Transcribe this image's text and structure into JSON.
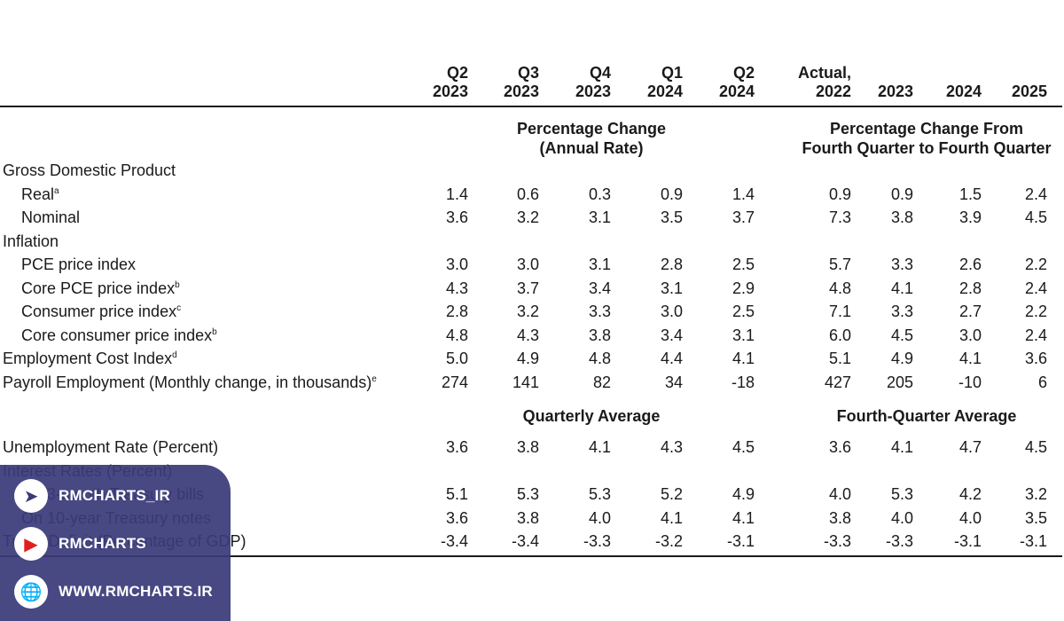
{
  "header": {
    "columns": [
      {
        "top": "Q2",
        "bottom": "2023"
      },
      {
        "top": "Q3",
        "bottom": "2023"
      },
      {
        "top": "Q4",
        "bottom": "2023"
      },
      {
        "top": "Q1",
        "bottom": "2024"
      },
      {
        "top": "Q2",
        "bottom": "2024"
      },
      {
        "top": "Actual,",
        "bottom": "2022"
      },
      {
        "top": "",
        "bottom": "2023"
      },
      {
        "top": "",
        "bottom": "2024"
      },
      {
        "top": "",
        "bottom": "2025"
      }
    ]
  },
  "bands": {
    "left1": {
      "line1": "Percentage Change",
      "line2": "(Annual Rate)"
    },
    "right1": {
      "line1": "Percentage Change From",
      "line2": "Fourth Quarter to Fourth Quarter"
    },
    "left2": "Quarterly Average",
    "right2": "Fourth-Quarter Average"
  },
  "rows": [
    {
      "label": "Gross Domestic Product",
      "sup": "",
      "indent": false,
      "values": []
    },
    {
      "label": "Real",
      "sup": "a",
      "indent": true,
      "values": [
        "1.4",
        "0.6",
        "0.3",
        "0.9",
        "1.4",
        "0.9",
        "0.9",
        "1.5",
        "2.4"
      ]
    },
    {
      "label": "Nominal",
      "sup": "",
      "indent": true,
      "values": [
        "3.6",
        "3.2",
        "3.1",
        "3.5",
        "3.7",
        "7.3",
        "3.8",
        "3.9",
        "4.5"
      ]
    },
    {
      "label": "Inflation",
      "sup": "",
      "indent": false,
      "values": []
    },
    {
      "label": "PCE price index",
      "sup": "",
      "indent": true,
      "values": [
        "3.0",
        "3.0",
        "3.1",
        "2.8",
        "2.5",
        "5.7",
        "3.3",
        "2.6",
        "2.2"
      ]
    },
    {
      "label": "Core PCE price index",
      "sup": "b",
      "indent": true,
      "values": [
        "4.3",
        "3.7",
        "3.4",
        "3.1",
        "2.9",
        "4.8",
        "4.1",
        "2.8",
        "2.4"
      ]
    },
    {
      "label": "Consumer price index",
      "sup": "c",
      "indent": true,
      "values": [
        "2.8",
        "3.2",
        "3.3",
        "3.0",
        "2.5",
        "7.1",
        "3.3",
        "2.7",
        "2.2"
      ]
    },
    {
      "label": "Core consumer price index",
      "sup": "b",
      "indent": true,
      "values": [
        "4.8",
        "4.3",
        "3.8",
        "3.4",
        "3.1",
        "6.0",
        "4.5",
        "3.0",
        "2.4"
      ]
    },
    {
      "label": "Employment Cost Index",
      "sup": "d",
      "indent": false,
      "values": [
        "5.0",
        "4.9",
        "4.8",
        "4.4",
        "4.1",
        "5.1",
        "4.9",
        "4.1",
        "3.6"
      ]
    },
    {
      "label": "Payroll Employment (Monthly change, in thousands)",
      "sup": "e",
      "indent": false,
      "values": [
        "274",
        "141",
        "82",
        "34",
        "-18",
        "427",
        "205",
        "-10",
        "6"
      ]
    }
  ],
  "rows2": [
    {
      "label": "Unemployment Rate (Percent)",
      "sup": "",
      "indent": false,
      "values": [
        "3.6",
        "3.8",
        "4.1",
        "4.3",
        "4.5",
        "3.6",
        "4.1",
        "4.7",
        "4.5"
      ]
    },
    {
      "label": "Interest Rates (Percent)",
      "sup": "",
      "indent": false,
      "values": []
    },
    {
      "label": "On 3-month Treasury bills",
      "sup": "",
      "indent": true,
      "values": [
        "5.1",
        "5.3",
        "5.3",
        "5.2",
        "4.9",
        "4.0",
        "5.3",
        "4.2",
        "3.2"
      ]
    },
    {
      "label": "On 10-year Treasury notes",
      "sup": "",
      "indent": true,
      "values": [
        "3.6",
        "3.8",
        "4.0",
        "4.1",
        "4.1",
        "3.8",
        "4.0",
        "4.0",
        "3.5"
      ]
    },
    {
      "label": "Trade Deficit (Percentage of GDP)",
      "sup": "",
      "indent": false,
      "values": [
        "-3.4",
        "-3.4",
        "-3.3",
        "-3.2",
        "-3.1",
        "-3.3",
        "-3.3",
        "-3.1",
        "-3.1"
      ]
    }
  ],
  "watermark": {
    "telegram": "RMCHARTS_IR",
    "youtube": "RMCHARTS",
    "website": "WWW.RMCHARTS.IR"
  }
}
